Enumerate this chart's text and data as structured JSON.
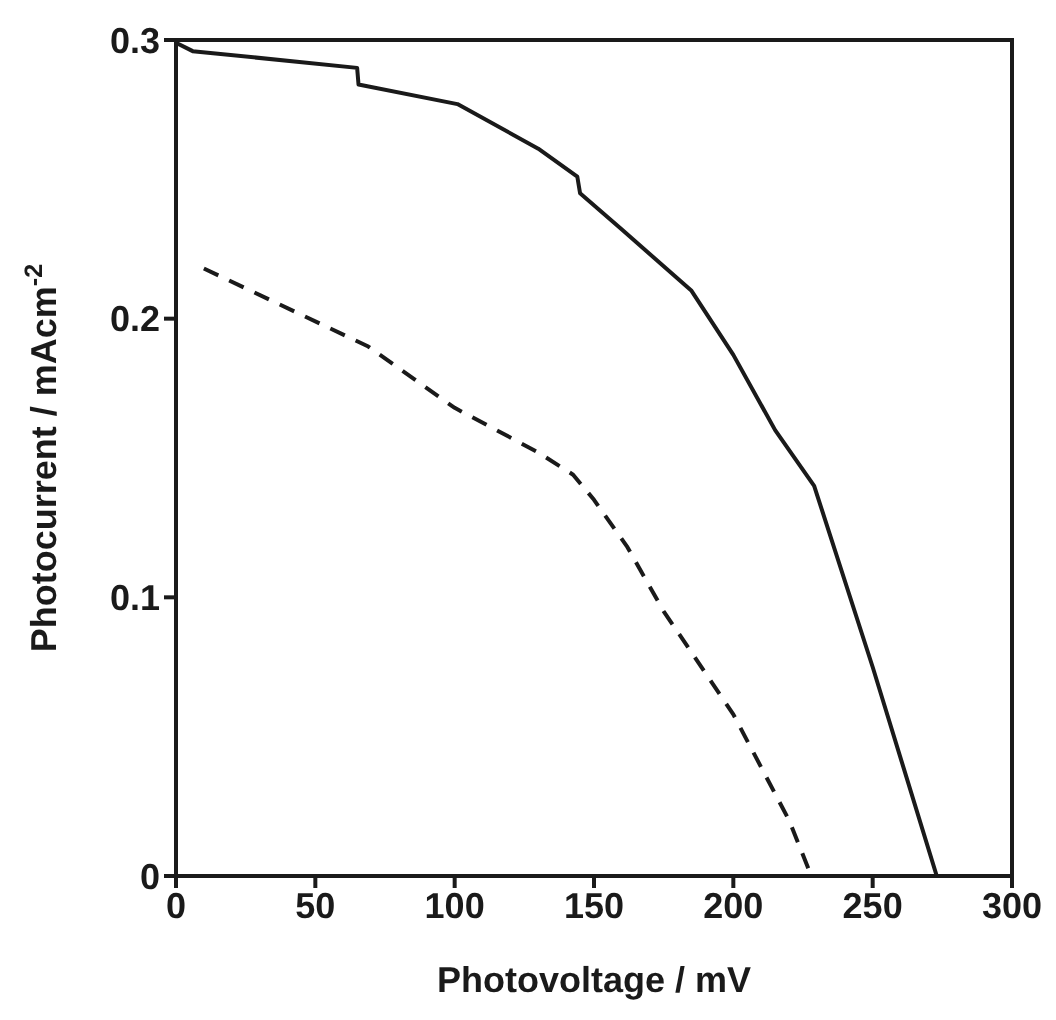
{
  "chart_data": {
    "type": "line",
    "xlabel": "Photovoltage / mV",
    "ylabel": "Photocurrent / mAcm$^{-2}$",
    "xlim": [
      0,
      300
    ],
    "xticks": [
      0,
      50,
      100,
      150,
      200,
      250,
      300
    ],
    "ylim": [
      0,
      0.3
    ],
    "yticks": [
      0,
      0.1,
      0.2,
      0.3
    ],
    "marker": "none",
    "series": [
      {
        "color": "#1a1a1a",
        "line_style": "solid",
        "x": [
          0,
          6,
          65,
          65.5,
          101,
          130,
          144,
          145,
          160,
          185,
          200,
          215,
          229,
          250,
          273
        ],
        "values": [
          0.299,
          0.296,
          0.29,
          0.284,
          0.277,
          0.261,
          0.251,
          0.245,
          0.232,
          0.21,
          0.187,
          0.16,
          0.14,
          0.075,
          0
        ]
      },
      {
        "color": "#1a1a1a",
        "line_style": "dashed",
        "x": [
          10,
          69,
          100,
          130,
          142.5,
          150,
          162,
          175,
          200,
          220,
          228
        ],
        "values": [
          0.218,
          0.19,
          0.168,
          0.152,
          0.144,
          0.135,
          0.118,
          0.095,
          0.058,
          0.02,
          0
        ]
      }
    ]
  }
}
